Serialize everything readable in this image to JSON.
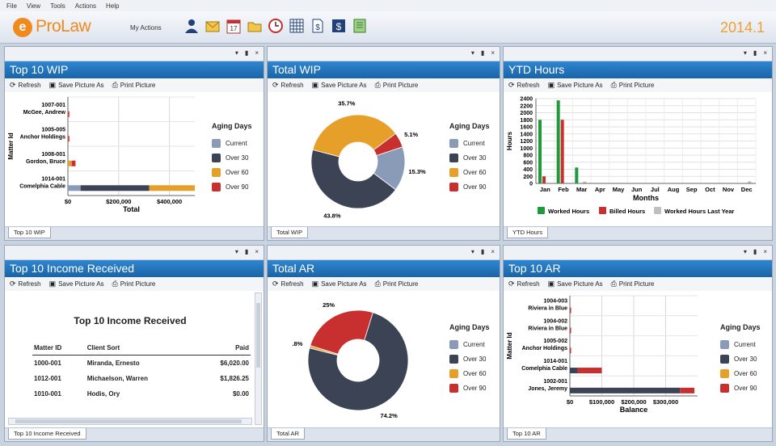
{
  "menu": [
    "File",
    "View",
    "Tools",
    "Actions",
    "Help"
  ],
  "app": {
    "logo_letter": "e",
    "name": "ProLaw",
    "my_actions": "My Actions",
    "version": "2014.1"
  },
  "toolbar_icons": [
    "person-icon",
    "mail-icon",
    "calendar-icon",
    "folder-icon",
    "clock-icon",
    "grid-icon",
    "dollar-doc-icon",
    "dollar-icon",
    "notebook-icon"
  ],
  "calendar_day": "17",
  "panel_actions": {
    "refresh": "Refresh",
    "save": "Save Picture As",
    "print": "Print Picture"
  },
  "colors": {
    "current": "#8a9bb8",
    "over30": "#3b4354",
    "over60": "#e6a02a",
    "over90": "#c83030",
    "worked": "#1f9a3a",
    "billed": "#c83030",
    "last_year": "#bfbfbf"
  },
  "aging": {
    "title": "Aging Days",
    "items": [
      "Current",
      "Over 30",
      "Over 60",
      "Over 90"
    ]
  },
  "panels": {
    "wip": {
      "title": "Top 10 WIP",
      "tab": "Top 10 WIP"
    },
    "total_wip": {
      "title": "Total WIP",
      "tab": "Total WIP"
    },
    "ytd": {
      "title": "YTD Hours",
      "tab": "YTD Hours"
    },
    "income": {
      "title": "Top 10 Income Received",
      "tab": "Top 10 Income Received"
    },
    "total_ar": {
      "title": "Total AR",
      "tab": "Total AR"
    },
    "ar": {
      "title": "Top 10 AR",
      "tab": "Top 10 AR"
    }
  },
  "income_table": {
    "heading": "Top 10 Income Received",
    "columns": [
      "Matter ID",
      "Client Sort",
      "Paid"
    ],
    "rows": [
      [
        "1000-001",
        "Miranda, Ernesto",
        "$6,020.00"
      ],
      [
        "1012-001",
        "Michaelson, Warren",
        "$1,826.25"
      ],
      [
        "1010-001",
        "Hodis, Ory",
        "$0.00"
      ]
    ]
  },
  "chart_data": [
    {
      "type": "bar",
      "orientation": "horizontal",
      "stacked": true,
      "panel": "Top 10 WIP",
      "categories": [
        "1007-001\nMcGee, Andrew",
        "1005-005\nAnchor Holdings",
        "1008-001\nGordon, Bruce",
        "1014-001\nComelphia Cable"
      ],
      "series": [
        {
          "name": "Current",
          "values": [
            0,
            0,
            0,
            50000
          ]
        },
        {
          "name": "Over 30",
          "values": [
            0,
            0,
            0,
            270000
          ]
        },
        {
          "name": "Over 60",
          "values": [
            1000,
            1000,
            15000,
            180000
          ]
        },
        {
          "name": "Over 90",
          "values": [
            3000,
            1000,
            15000,
            0
          ]
        }
      ],
      "xlabel": "Total",
      "ylabel": "Matter Id",
      "xlim": [
        0,
        500000
      ],
      "xticks": [
        "$0",
        "$200,000",
        "$400,000"
      ],
      "legend": "right",
      "grid": true
    },
    {
      "type": "pie",
      "donut": true,
      "panel": "Total WIP",
      "labels": [
        "Current",
        "Over 30",
        "Over 60",
        "Over 90"
      ],
      "values": [
        15.3,
        43.8,
        35.7,
        5.1
      ],
      "data_labels": [
        "15.3%",
        "43.8%",
        "35.7%",
        "5.1%"
      ],
      "legend": "right"
    },
    {
      "type": "bar",
      "panel": "YTD Hours",
      "categories": [
        "Jan",
        "Feb",
        "Mar",
        "Apr",
        "May",
        "Jun",
        "Jul",
        "Aug",
        "Sep",
        "Oct",
        "Nov",
        "Dec"
      ],
      "series": [
        {
          "name": "Worked Hours",
          "values": [
            1800,
            2350,
            450,
            0,
            0,
            0,
            0,
            0,
            0,
            0,
            0,
            0
          ]
        },
        {
          "name": "Billed Hours",
          "values": [
            200,
            1800,
            0,
            0,
            0,
            0,
            0,
            0,
            0,
            0,
            0,
            0
          ]
        },
        {
          "name": "Worked Hours Last Year",
          "values": [
            0,
            0,
            50,
            0,
            0,
            0,
            0,
            0,
            0,
            0,
            0,
            60
          ]
        }
      ],
      "xlabel": "Months",
      "ylabel": "Hours",
      "ylim": [
        0,
        2400
      ],
      "yticks": [
        0,
        200,
        400,
        600,
        800,
        1000,
        1200,
        1400,
        1600,
        1800,
        2000,
        2200,
        2400
      ],
      "legend": "bottom",
      "grid": true
    },
    {
      "type": "pie",
      "donut": true,
      "panel": "Total AR",
      "labels": [
        "Current",
        "Over 30",
        "Over 60",
        "Over 90"
      ],
      "values": [
        0,
        74.2,
        0.8,
        25
      ],
      "data_labels": [
        "",
        "74.2%",
        ".8%",
        "25%"
      ],
      "legend": "right"
    },
    {
      "type": "bar",
      "orientation": "horizontal",
      "stacked": true,
      "panel": "Top 10 AR",
      "categories": [
        "1004-003\nRiviera in Blue",
        "1004-002\nRiviera in Blue",
        "1005-002\nAnchor Holdings",
        "1014-001\nComelphia Cable",
        "1002-001\nJones, Jeremy"
      ],
      "series": [
        {
          "name": "Current",
          "values": [
            0,
            0,
            0,
            0,
            0
          ]
        },
        {
          "name": "Over 30",
          "values": [
            0,
            0,
            0,
            25000,
            345000
          ]
        },
        {
          "name": "Over 60",
          "values": [
            0,
            0,
            0,
            0,
            0
          ]
        },
        {
          "name": "Over 90",
          "values": [
            1000,
            1000,
            2000,
            75000,
            45000
          ]
        }
      ],
      "xlabel": "Balance",
      "ylabel": "Matter Id",
      "xlim": [
        0,
        400000
      ],
      "xticks": [
        "$0",
        "$100,000",
        "$200,000",
        "$300,000"
      ],
      "legend": "right",
      "grid": true
    }
  ]
}
